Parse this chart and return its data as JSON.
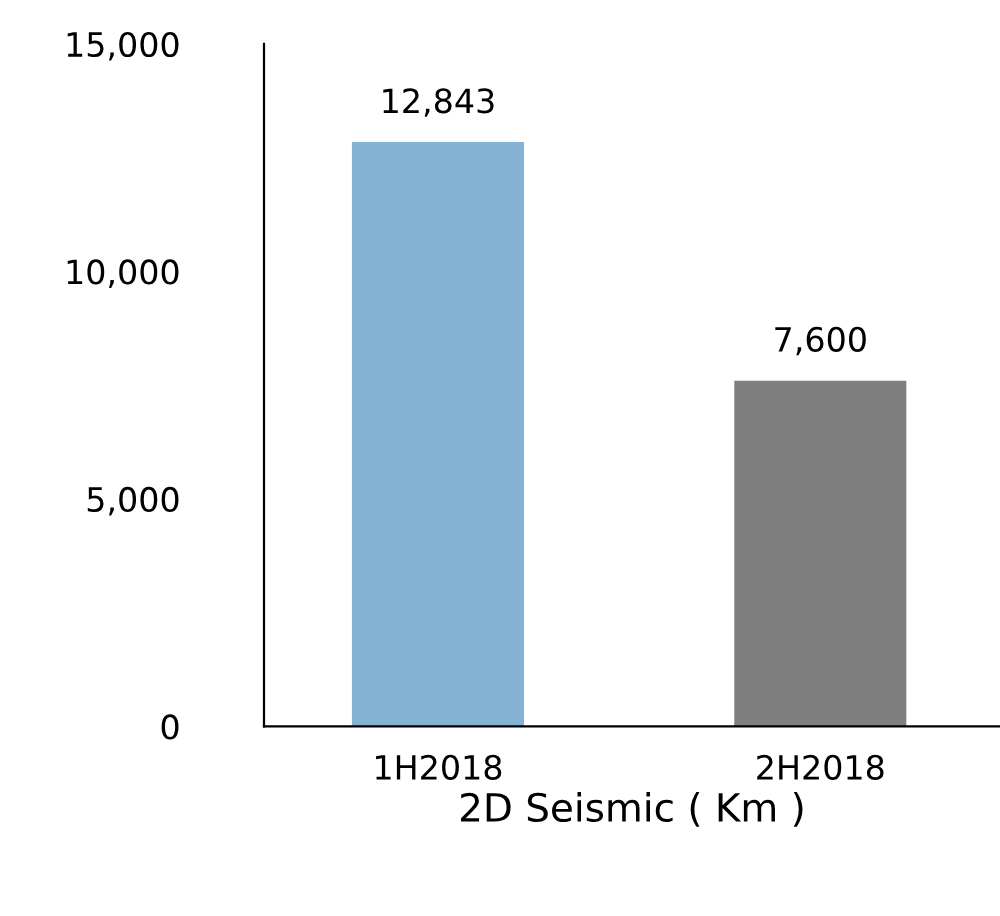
{
  "chart_data": {
    "type": "bar",
    "xlabel": "2D Seismic ( Km )",
    "categories": [
      "1H2018",
      "2H2018"
    ],
    "values": [
      12843,
      7600
    ],
    "colors": [
      "#84b3d3",
      "#7f7f7f"
    ],
    "value_labels": [
      "12,843",
      "7,600"
    ],
    "ylim": [
      0,
      15000
    ],
    "yticks": [
      {
        "value": 0,
        "label": "0"
      },
      {
        "value": 5000,
        "label": "5,000"
      },
      {
        "value": 10000,
        "label": "10,000"
      },
      {
        "value": 15000,
        "label": "15,000"
      }
    ],
    "grid": false,
    "legend": false
  }
}
